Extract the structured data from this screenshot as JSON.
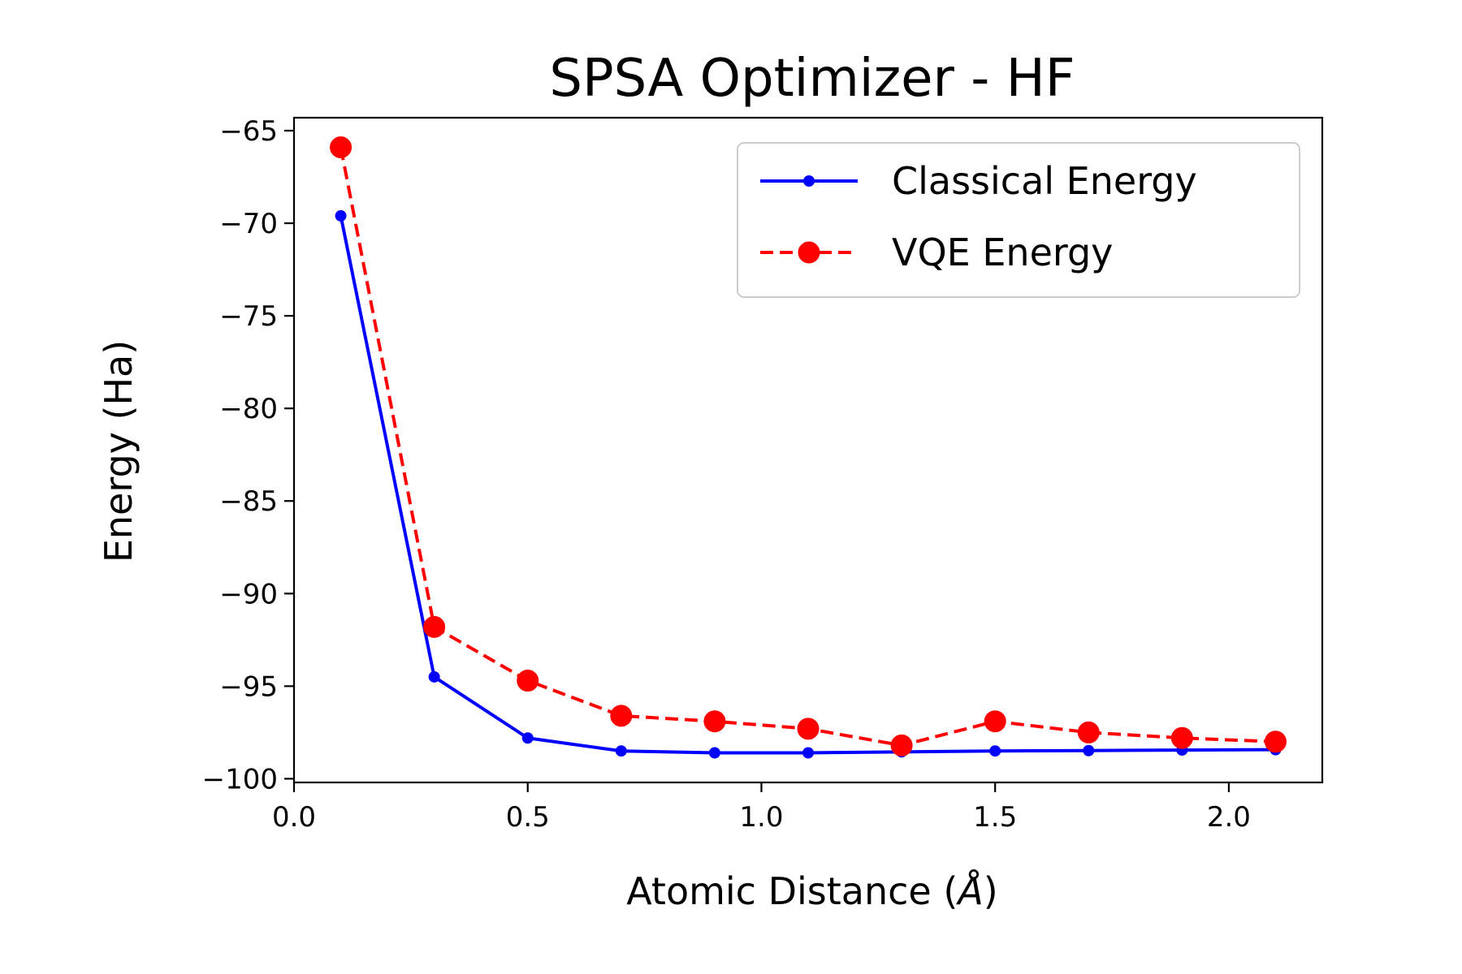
{
  "chart_data": {
    "type": "line",
    "title": "SPSA Optimizer - HF",
    "xlabel_prefix": "Atomic Distance (",
    "xlabel_symbol": "Å",
    "xlabel_suffix": ")",
    "ylabel": "Energy (Ha)",
    "xlim": [
      0.0,
      2.2
    ],
    "ylim": [
      -100.2,
      -64.3
    ],
    "x_ticks": [
      0.0,
      0.5,
      1.0,
      1.5,
      2.0
    ],
    "x_tick_labels": [
      "0.0",
      "0.5",
      "1.0",
      "1.5",
      "2.0"
    ],
    "y_ticks": [
      -65,
      -70,
      -75,
      -80,
      -85,
      -90,
      -95,
      -100
    ],
    "y_tick_labels": [
      "−65",
      "−70",
      "−75",
      "−80",
      "−85",
      "−90",
      "−95",
      "−100"
    ],
    "grid": false,
    "legend_position": "top-right",
    "x": [
      0.1,
      0.3,
      0.5,
      0.7,
      0.9,
      1.1,
      1.3,
      1.5,
      1.7,
      1.9,
      2.1
    ],
    "series": [
      {
        "name": "Classical Energy",
        "color": "#0000ff",
        "line_style": "solid",
        "marker": "small-dot",
        "values": [
          -69.6,
          -94.5,
          -97.8,
          -98.5,
          -98.6,
          -98.6,
          -98.55,
          -98.5,
          -98.48,
          -98.45,
          -98.43
        ]
      },
      {
        "name": "VQE Energy",
        "color": "#ff0000",
        "line_style": "dashed",
        "marker": "large-dot",
        "values": [
          -65.9,
          -91.8,
          -94.7,
          -96.6,
          -96.9,
          -97.3,
          -98.2,
          -96.9,
          -97.5,
          -97.8,
          -98.0
        ]
      }
    ]
  }
}
